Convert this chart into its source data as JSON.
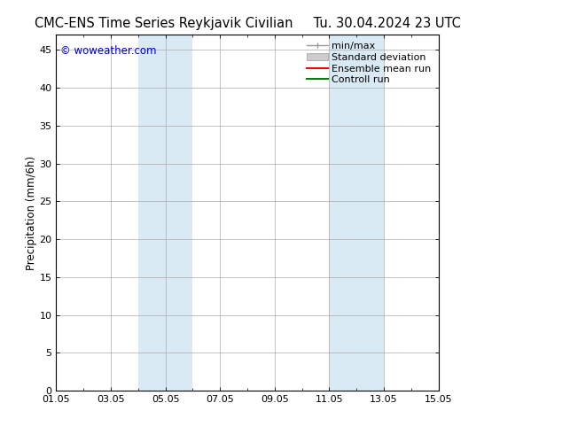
{
  "title": "CMC-ENS Time Series Reykjavik Civilian",
  "title_right": "Tu. 30.04.2024 23 UTC",
  "ylabel": "Precipitation (mm/6h)",
  "watermark": "© woweather.com",
  "xtick_labels": [
    "01.05",
    "03.05",
    "05.05",
    "07.05",
    "09.05",
    "11.05",
    "13.05",
    "15.05"
  ],
  "xtick_positions": [
    0,
    2,
    4,
    6,
    8,
    10,
    12,
    14
  ],
  "xlim": [
    0,
    14
  ],
  "ylim": [
    0,
    47
  ],
  "ytick_positions": [
    0,
    5,
    10,
    15,
    20,
    25,
    30,
    35,
    40,
    45
  ],
  "ytick_labels": [
    "0",
    "5",
    "10",
    "15",
    "20",
    "25",
    "30",
    "35",
    "40",
    "45"
  ],
  "shaded_regions": [
    {
      "xstart": 3.0,
      "xend": 5.0,
      "color": "#daeaf5"
    },
    {
      "xstart": 10.0,
      "xend": 12.0,
      "color": "#daeaf5"
    }
  ],
  "watermark_color": "#0000cc",
  "background_color": "#ffffff",
  "grid_color": "#aaaaaa",
  "title_fontsize": 10.5,
  "axis_label_fontsize": 8.5,
  "tick_fontsize": 8,
  "legend_fontsize": 8
}
